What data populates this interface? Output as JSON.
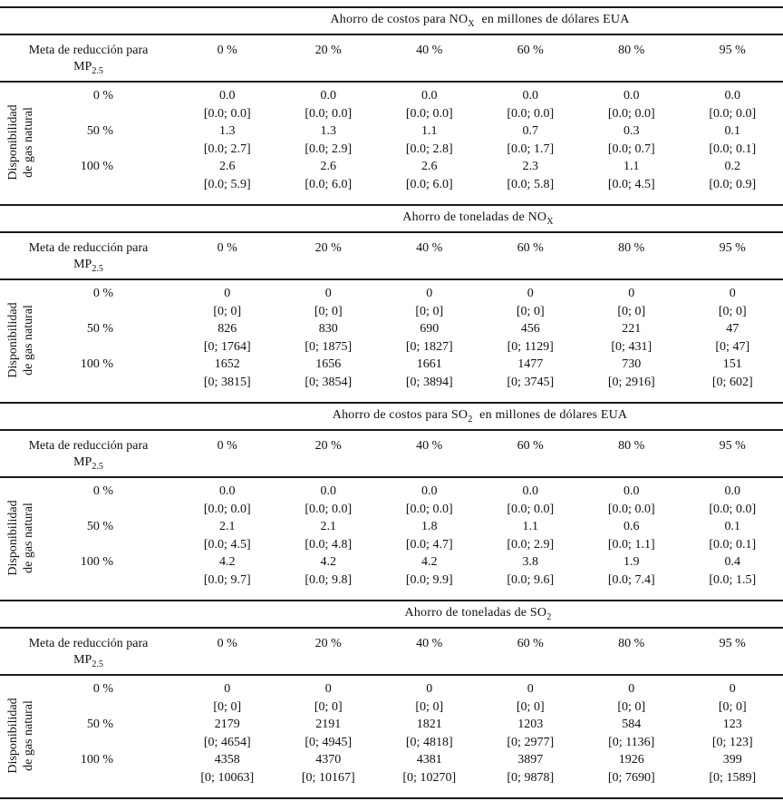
{
  "page": {
    "background": "#ffffff",
    "text_color": "#111111",
    "rule_color": "#1a1a1a"
  },
  "side_label": {
    "line1": "Disponibilidad",
    "line2": "de gas natural"
  },
  "header": {
    "label_line1": "Meta de reducción para",
    "label_line2_base": "MP",
    "label_line2_sub": "2.5",
    "columns": [
      "0 %",
      "20 %",
      "40 %",
      "60 %",
      "80 %",
      "95 %"
    ]
  },
  "sections": [
    {
      "title": {
        "pre": "Ahorro de costos para NO",
        "sub": "X",
        "post": " en millones de dólares EUA"
      },
      "rows": [
        {
          "label": "0 %",
          "values": [
            "0.0",
            "0.0",
            "0.0",
            "0.0",
            "0.0",
            "0.0"
          ],
          "intervals": [
            "[0.0; 0.0]",
            "[0.0; 0.0]",
            "[0.0; 0.0]",
            "[0.0; 0.0]",
            "[0.0; 0.0]",
            "[0.0; 0.0]"
          ]
        },
        {
          "label": "50 %",
          "values": [
            "1.3",
            "1.3",
            "1.1",
            "0.7",
            "0.3",
            "0.1"
          ],
          "intervals": [
            "[0.0; 2.7]",
            "[0.0; 2.9]",
            "[0.0; 2.8]",
            "[0.0; 1.7]",
            "[0.0; 0.7]",
            "[0.0; 0.1]"
          ]
        },
        {
          "label": "100 %",
          "values": [
            "2.6",
            "2.6",
            "2.6",
            "2.3",
            "1.1",
            "0.2"
          ],
          "intervals": [
            "[0.0; 5.9]",
            "[0.0; 6.0]",
            "[0.0; 6.0]",
            "[0.0; 5.8]",
            "[0.0; 4.5]",
            "[0.0; 0.9]"
          ]
        }
      ]
    },
    {
      "title": {
        "pre": "Ahorro de toneladas de NO",
        "sub": "X",
        "post": ""
      },
      "rows": [
        {
          "label": "0 %",
          "values": [
            "0",
            "0",
            "0",
            "0",
            "0",
            "0"
          ],
          "intervals": [
            "[0; 0]",
            "[0; 0]",
            "[0; 0]",
            "[0; 0]",
            "[0; 0]",
            "[0; 0]"
          ]
        },
        {
          "label": "50 %",
          "values": [
            "826",
            "830",
            "690",
            "456",
            "221",
            "47"
          ],
          "intervals": [
            "[0; 1764]",
            "[0; 1875]",
            "[0; 1827]",
            "[0; 1129]",
            "[0; 431]",
            "[0; 47]"
          ]
        },
        {
          "label": "100 %",
          "values": [
            "1652",
            "1656",
            "1661",
            "1477",
            "730",
            "151"
          ],
          "intervals": [
            "[0; 3815]",
            "[0; 3854]",
            "[0; 3894]",
            "[0; 3745]",
            "[0; 2916]",
            "[0; 602]"
          ]
        }
      ]
    },
    {
      "title": {
        "pre": "Ahorro de costos para SO",
        "sub": "2",
        "post": " en millones de dólares EUA"
      },
      "rows": [
        {
          "label": "0 %",
          "values": [
            "0.0",
            "0.0",
            "0.0",
            "0.0",
            "0.0",
            "0.0"
          ],
          "intervals": [
            "[0.0; 0.0]",
            "[0.0; 0.0]",
            "[0.0; 0.0]",
            "[0.0; 0.0]",
            "[0.0; 0.0]",
            "[0.0; 0.0]"
          ]
        },
        {
          "label": "50 %",
          "values": [
            "2.1",
            "2.1",
            "1.8",
            "1.1",
            "0.6",
            "0.1"
          ],
          "intervals": [
            "[0.0; 4.5]",
            "[0.0; 4.8]",
            "[0.0; 4.7]",
            "[0.0; 2.9]",
            "[0.0; 1.1]",
            "[0.0; 0.1]"
          ]
        },
        {
          "label": "100 %",
          "values": [
            "4.2",
            "4.2",
            "4.2",
            "3.8",
            "1.9",
            "0.4"
          ],
          "intervals": [
            "[0.0; 9.7]",
            "[0.0; 9.8]",
            "[0.0; 9.9]",
            "[0.0; 9.6]",
            "[0.0; 7.4]",
            "[0.0; 1.5]"
          ]
        }
      ]
    },
    {
      "title": {
        "pre": "Ahorro de toneladas de SO",
        "sub": "2",
        "post": ""
      },
      "rows": [
        {
          "label": "0 %",
          "values": [
            "0",
            "0",
            "0",
            "0",
            "0",
            "0"
          ],
          "intervals": [
            "[0; 0]",
            "[0; 0]",
            "[0; 0]",
            "[0; 0]",
            "[0; 0]",
            "[0; 0]"
          ]
        },
        {
          "label": "50 %",
          "values": [
            "2179",
            "2191",
            "1821",
            "1203",
            "584",
            "123"
          ],
          "intervals": [
            "[0; 4654]",
            "[0; 4945]",
            "[0; 4818]",
            "[0; 2977]",
            "[0; 1136]",
            "[0; 123]"
          ]
        },
        {
          "label": "100 %",
          "values": [
            "4358",
            "4370",
            "4381",
            "3897",
            "1926",
            "399"
          ],
          "intervals": [
            "[0; 10063]",
            "[0; 10167]",
            "[0; 10270]",
            "[0; 9878]",
            "[0; 7690]",
            "[0; 1589]"
          ]
        }
      ]
    }
  ]
}
